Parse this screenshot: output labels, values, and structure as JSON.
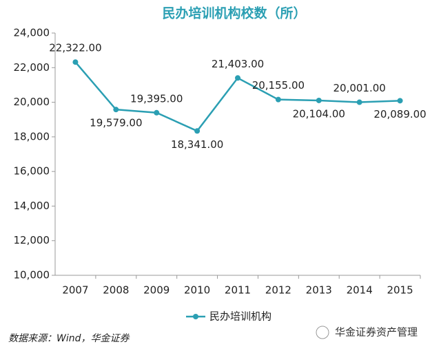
{
  "chart_data": {
    "type": "line",
    "title": "民办培训机构校数（所）",
    "categories": [
      "2007",
      "2008",
      "2009",
      "2010",
      "2011",
      "2012",
      "2013",
      "2014",
      "2015"
    ],
    "series": [
      {
        "name": "民办培训机构",
        "color": "#2b9fb3",
        "values": [
          22322,
          19579,
          19395,
          18341,
          21403,
          20155,
          20104,
          20001,
          20089
        ],
        "value_labels": [
          "22,322.00",
          "19,579.00",
          "19,395.00",
          "18,341.00",
          "21,403.00",
          "20,155.00",
          "20,104.00",
          "20,001.00",
          "20,089.00"
        ]
      }
    ],
    "ylim": [
      10000,
      24000
    ],
    "yticks": [
      {
        "value": 10000,
        "label": "10,000"
      },
      {
        "value": 12000,
        "label": "12,000"
      },
      {
        "value": 14000,
        "label": "14,000"
      },
      {
        "value": 16000,
        "label": "16,000"
      },
      {
        "value": 18000,
        "label": "18,000"
      },
      {
        "value": 20000,
        "label": "20,000"
      },
      {
        "value": 22000,
        "label": "22,000"
      },
      {
        "value": 24000,
        "label": "24,000"
      }
    ],
    "grid": false,
    "legend": "bottom",
    "source": "数据来源：Wind，华金证券",
    "watermark": "华金证券资产管理"
  }
}
